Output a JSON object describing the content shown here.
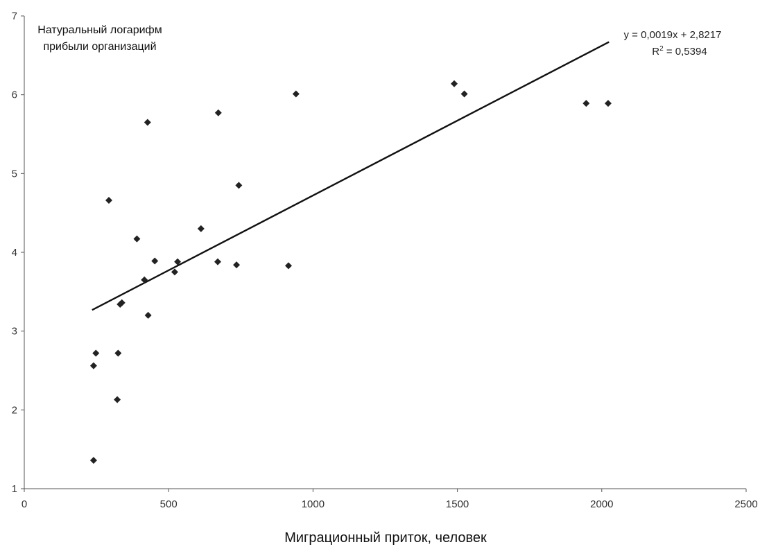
{
  "chart_data": {
    "type": "scatter",
    "title": "",
    "ylabel_lines": [
      "Натуральный логарифм",
      "прибыли организаций"
    ],
    "xlabel": "Миграционный приток, человек",
    "xlim": [
      0,
      2500
    ],
    "ylim": [
      1,
      7
    ],
    "x_ticks": [
      0,
      500,
      1000,
      1500,
      2000,
      2500
    ],
    "y_ticks": [
      1,
      2,
      3,
      4,
      5,
      6,
      7
    ],
    "grid": false,
    "points": [
      [
        240,
        1.36
      ],
      [
        240,
        2.56
      ],
      [
        248,
        2.72
      ],
      [
        293,
        4.66
      ],
      [
        322,
        2.13
      ],
      [
        325,
        2.72
      ],
      [
        332,
        3.34
      ],
      [
        338,
        3.36
      ],
      [
        390,
        4.17
      ],
      [
        416,
        3.65
      ],
      [
        427,
        5.65
      ],
      [
        429,
        3.2
      ],
      [
        452,
        3.89
      ],
      [
        521,
        3.75
      ],
      [
        531,
        3.88
      ],
      [
        612,
        4.3
      ],
      [
        670,
        3.88
      ],
      [
        672,
        5.77
      ],
      [
        735,
        3.84
      ],
      [
        743,
        4.85
      ],
      [
        915,
        3.83
      ],
      [
        941,
        6.01
      ],
      [
        1489,
        6.14
      ],
      [
        1524,
        6.01
      ],
      [
        1946,
        5.89
      ],
      [
        2022,
        5.89
      ]
    ],
    "trendline": {
      "slope": 0.0019,
      "intercept": 2.8217,
      "x_range": [
        235,
        2025
      ],
      "equation": "y = 0,0019x + 2,8217",
      "r2_label": "R",
      "r2_value": " = 0,5394"
    },
    "marker_color": "#222222",
    "line_color": "#111111"
  }
}
